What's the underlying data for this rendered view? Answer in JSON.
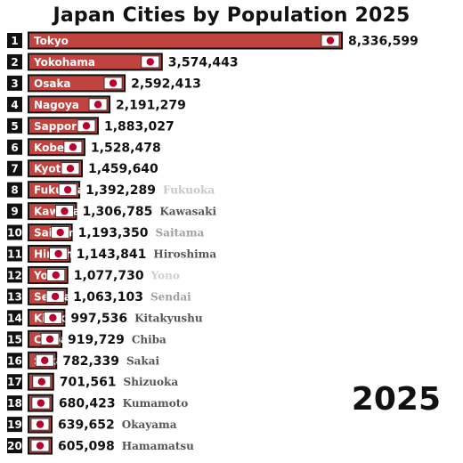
{
  "chart_data": {
    "type": "bar",
    "title": "Japan Cities by Population 2025",
    "year": "2025",
    "orientation": "horizontal",
    "bar_color": "#c0433f",
    "flag_red": "#bc002d",
    "ranks": [
      "1",
      "2",
      "3",
      "4",
      "5",
      "6",
      "7",
      "8",
      "9",
      "10",
      "11",
      "12",
      "13",
      "14",
      "15",
      "16",
      "17",
      "18",
      "19",
      "20"
    ],
    "bar_labels": [
      "Tokyo",
      "Yokohama",
      "Osaka",
      "Nagoya",
      "Sapporo",
      "Kobe",
      "Kyoto",
      "Fukuoka",
      "Kawasaki",
      "Saitama",
      "Hiroshima",
      "Yono",
      "Sendai",
      "Kitakyushu",
      "Chiba",
      "Sakai",
      "",
      "",
      "",
      ""
    ],
    "values": [
      8336599,
      3574443,
      2592413,
      2191279,
      1883027,
      1528478,
      1459640,
      1392289,
      1306785,
      1193350,
      1143841,
      1077730,
      1063103,
      997536,
      919729,
      782339,
      701561,
      680423,
      639652,
      605098
    ],
    "value_labels": [
      "8,336,599",
      "3,574,443",
      "2,592,413",
      "2,191,279",
      "1,883,027",
      "1,528,478",
      "1,459,640",
      "1,392,289",
      "1,306,785",
      "1,193,350",
      "1,143,841",
      "1,077,730",
      "1,063,103",
      "997,536",
      "919,729",
      "782,339",
      "701,561",
      "680,423",
      "639,652",
      "605,098"
    ],
    "outside_labels": [
      "",
      "",
      "",
      "",
      "",
      "",
      "",
      "Fukuoka",
      "Kawasaki",
      "Saitama",
      "Hiroshima",
      "Yono",
      "Sendai",
      "Kitakyushu",
      "Chiba",
      "Sakai",
      "Shizuoka",
      "Kumamoto",
      "Okayama",
      "Hamamatsu"
    ],
    "outside_label_colors": [
      "#555",
      "#555",
      "#555",
      "#555",
      "#555",
      "#555",
      "#555",
      "#c8c8c8",
      "#555",
      "#a0a0a0",
      "#555",
      "#d0d0d0",
      "#a0a0a0",
      "#555",
      "#555",
      "#555",
      "#555",
      "#555",
      "#555",
      "#555"
    ]
  }
}
